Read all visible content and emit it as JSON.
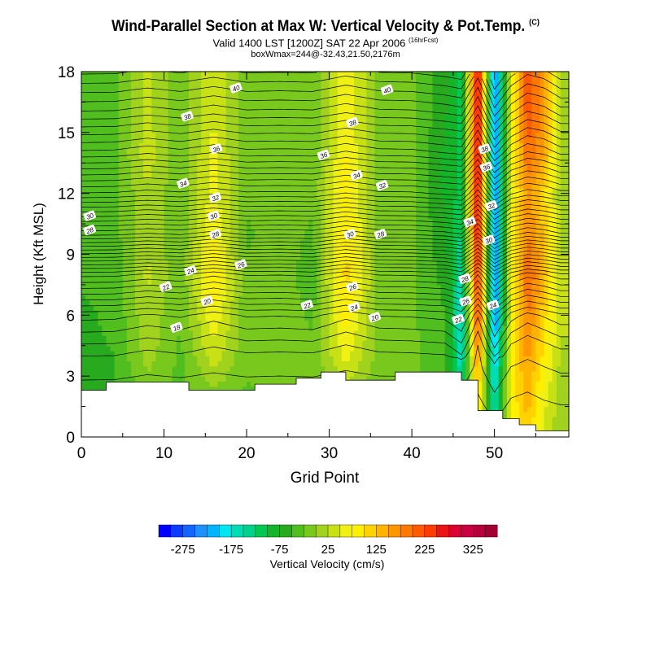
{
  "header": {
    "title": "Wind-Parallel Section at Max W: Vertical Velocity & Pot.Temp.",
    "title_tag": "(C)",
    "subtitle": "Valid 1400 LST [1200Z] SAT 22 Apr 2006",
    "subtitle_tag": "(16hrFcst)",
    "box_info": "boxWmax=244@-32.43,21.50,2176m"
  },
  "chart_data": {
    "type": "heatmap",
    "xlabel": "Grid Point",
    "ylabel": "Height (Kft MSL)",
    "xlim": [
      0,
      59
    ],
    "ylim": [
      0,
      18
    ],
    "x_ticks": [
      0,
      10,
      20,
      30,
      40,
      50
    ],
    "y_ticks": [
      0,
      3,
      6,
      9,
      12,
      15,
      18
    ],
    "fill_variable": "Vertical Velocity (cm/s)",
    "colorbar": {
      "label": "Vertical Velocity (cm/s)",
      "tick_labels": [
        "-275",
        "-175",
        "-75",
        "25",
        "125",
        "225",
        "325"
      ],
      "tick_values": [
        -275,
        -175,
        -75,
        25,
        125,
        225,
        325
      ],
      "min": -325,
      "max": 375,
      "step": 25,
      "colors": [
        "#0000ff",
        "#0a3cff",
        "#1464ff",
        "#1e90ff",
        "#00b4ff",
        "#00e6f0",
        "#00dcb4",
        "#00d28c",
        "#00c850",
        "#14b428",
        "#28aa1e",
        "#50be1e",
        "#78c81e",
        "#a0d21e",
        "#c8e114",
        "#f0f014",
        "#fff000",
        "#ffd200",
        "#ffb400",
        "#ff9600",
        "#ff7800",
        "#ff5a00",
        "#ff3c00",
        "#eb1414",
        "#dc0032",
        "#c80041",
        "#b4003c",
        "#a00032"
      ]
    },
    "w_field": {
      "description_of_axes": "rows are heights (Kft), cols are grid points",
      "heights": [
        0,
        2,
        4,
        6,
        8,
        10,
        12,
        14,
        16,
        18
      ],
      "grid_points": [
        0,
        4,
        8,
        12,
        16,
        20,
        24,
        28,
        32,
        36,
        40,
        44,
        46,
        48,
        50,
        52,
        54,
        56,
        58
      ],
      "values": [
        [
          -60,
          -60,
          -20,
          -40,
          -20,
          -40,
          -30,
          -40,
          -20,
          -40,
          -30,
          -20,
          -140,
          80,
          -150,
          60,
          120,
          40,
          10
        ],
        [
          -60,
          -55,
          -15,
          -35,
          -10,
          -30,
          -20,
          -30,
          10,
          -20,
          -20,
          -30,
          -150,
          120,
          -180,
          80,
          140,
          60,
          10
        ],
        [
          -55,
          -50,
          10,
          -30,
          40,
          -20,
          -10,
          -20,
          60,
          -10,
          -20,
          -40,
          -170,
          180,
          -220,
          80,
          160,
          90,
          20
        ],
        [
          -55,
          -45,
          20,
          -25,
          70,
          -20,
          -10,
          -30,
          90,
          -10,
          -20,
          -50,
          -180,
          240,
          -250,
          60,
          180,
          110,
          30
        ],
        [
          -45,
          -40,
          30,
          -20,
          100,
          -20,
          -10,
          -40,
          110,
          -10,
          -20,
          -60,
          -160,
          260,
          -260,
          70,
          200,
          140,
          30
        ],
        [
          -45,
          -35,
          20,
          -20,
          80,
          -30,
          -10,
          -30,
          100,
          -10,
          -20,
          -70,
          -130,
          280,
          -250,
          70,
          180,
          120,
          20
        ],
        [
          -40,
          -30,
          20,
          -20,
          60,
          -20,
          -10,
          -20,
          90,
          -10,
          -20,
          -80,
          -110,
          290,
          -250,
          60,
          160,
          110,
          10
        ],
        [
          -40,
          -30,
          40,
          -20,
          60,
          -20,
          -10,
          -20,
          80,
          -10,
          -20,
          -80,
          -110,
          300,
          -250,
          60,
          200,
          150,
          20
        ],
        [
          -35,
          -30,
          30,
          -20,
          50,
          -20,
          -10,
          -20,
          70,
          -10,
          -20,
          -70,
          -110,
          300,
          -250,
          60,
          220,
          160,
          20
        ],
        [
          -35,
          -30,
          30,
          -20,
          50,
          -20,
          -10,
          -20,
          70,
          -10,
          -20,
          -70,
          -110,
          300,
          -250,
          60,
          220,
          160,
          20
        ]
      ]
    },
    "terrain": {
      "x": [
        0,
        3,
        3,
        13,
        13,
        21,
        21,
        26,
        26,
        29,
        29,
        32,
        32,
        38,
        38,
        46,
        46,
        48,
        48,
        51,
        51,
        53,
        53,
        55,
        55,
        59
      ],
      "height": [
        2.3,
        2.3,
        2.7,
        2.7,
        2.3,
        2.3,
        2.6,
        2.6,
        2.9,
        2.9,
        3.2,
        3.2,
        2.8,
        2.8,
        3.2,
        3.2,
        2.8,
        2.8,
        1.3,
        1.3,
        0.9,
        0.9,
        0.6,
        0.6,
        0.3,
        0.3
      ]
    },
    "theta_contour_labels": [
      {
        "text": "40",
        "x": 18.7,
        "y": 17.2
      },
      {
        "text": "40",
        "x": 37.0,
        "y": 17.1
      },
      {
        "text": "38",
        "x": 12.8,
        "y": 15.8
      },
      {
        "text": "38",
        "x": 32.8,
        "y": 15.5
      },
      {
        "text": "36",
        "x": 16.3,
        "y": 14.2
      },
      {
        "text": "36",
        "x": 29.3,
        "y": 13.9
      },
      {
        "text": "34",
        "x": 12.3,
        "y": 12.5
      },
      {
        "text": "34",
        "x": 33.3,
        "y": 12.9
      },
      {
        "text": "34",
        "x": 47.0,
        "y": 10.6
      },
      {
        "text": "32",
        "x": 16.2,
        "y": 11.8
      },
      {
        "text": "32",
        "x": 36.4,
        "y": 12.4
      },
      {
        "text": "32",
        "x": 49.6,
        "y": 11.4
      },
      {
        "text": "36",
        "x": 49.0,
        "y": 13.3
      },
      {
        "text": "38",
        "x": 48.8,
        "y": 14.2
      },
      {
        "text": "30",
        "x": 1.0,
        "y": 10.9
      },
      {
        "text": "30",
        "x": 16.0,
        "y": 10.9
      },
      {
        "text": "30",
        "x": 32.5,
        "y": 10.0
      },
      {
        "text": "30",
        "x": 49.3,
        "y": 9.7
      },
      {
        "text": "28",
        "x": 1.0,
        "y": 10.2
      },
      {
        "text": "28",
        "x": 16.2,
        "y": 10.0
      },
      {
        "text": "28",
        "x": 36.2,
        "y": 10.0
      },
      {
        "text": "28",
        "x": 46.4,
        "y": 7.8
      },
      {
        "text": "26",
        "x": 19.3,
        "y": 8.5
      },
      {
        "text": "26",
        "x": 32.8,
        "y": 7.4
      },
      {
        "text": "26",
        "x": 46.5,
        "y": 6.7
      },
      {
        "text": "24",
        "x": 13.2,
        "y": 8.2
      },
      {
        "text": "24",
        "x": 33.0,
        "y": 6.4
      },
      {
        "text": "24",
        "x": 49.8,
        "y": 6.5
      },
      {
        "text": "22",
        "x": 10.2,
        "y": 7.4
      },
      {
        "text": "22",
        "x": 27.3,
        "y": 6.5
      },
      {
        "text": "22",
        "x": 45.6,
        "y": 5.8
      },
      {
        "text": "20",
        "x": 15.2,
        "y": 6.7
      },
      {
        "text": "20",
        "x": 35.5,
        "y": 5.9
      },
      {
        "text": "18",
        "x": 11.5,
        "y": 5.4
      }
    ],
    "theta_contours": {
      "levels_start": 17,
      "levels_end": 41,
      "step": 0.5,
      "base_profile_heights": [
        0,
        4,
        6,
        8,
        10,
        12,
        14,
        16,
        18
      ],
      "base_profile_theta": [
        16.5,
        17.8,
        19.5,
        23.0,
        28.5,
        32.8,
        36.2,
        38.8,
        41.0
      ]
    }
  }
}
